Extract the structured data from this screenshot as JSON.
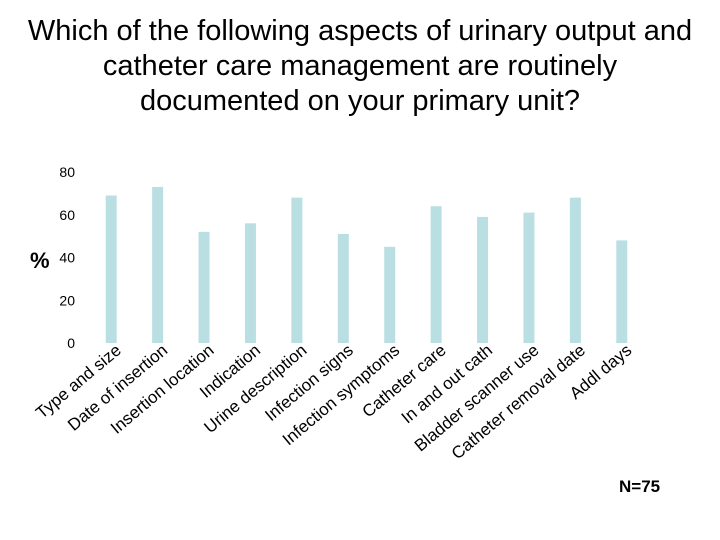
{
  "slide": {
    "title": "Which of the following aspects of urinary output and catheter care management are routinely documented on your primary unit?",
    "note": "N=75"
  },
  "chart_data": {
    "type": "bar",
    "title": "Which of the following aspects of urinary output and catheter care management are routinely documented on your primary unit?",
    "xlabel": "",
    "ylabel": "%",
    "ylim": [
      0,
      80
    ],
    "yticks": [
      0,
      20,
      40,
      60,
      80
    ],
    "grid": false,
    "legend": "none",
    "bar_color": "#b9dfe3",
    "categories": [
      "Type and size",
      "Date of insertion",
      "Insertion location",
      "Indication",
      "Urine description",
      "Infection signs",
      "Infection symptoms",
      "Catheter care",
      "In and out cath",
      "Bladder scanner use",
      "Catheter removal date",
      "Addl days"
    ],
    "values": [
      69,
      73,
      52,
      56,
      68,
      51,
      45,
      64,
      59,
      61,
      68,
      48
    ]
  }
}
